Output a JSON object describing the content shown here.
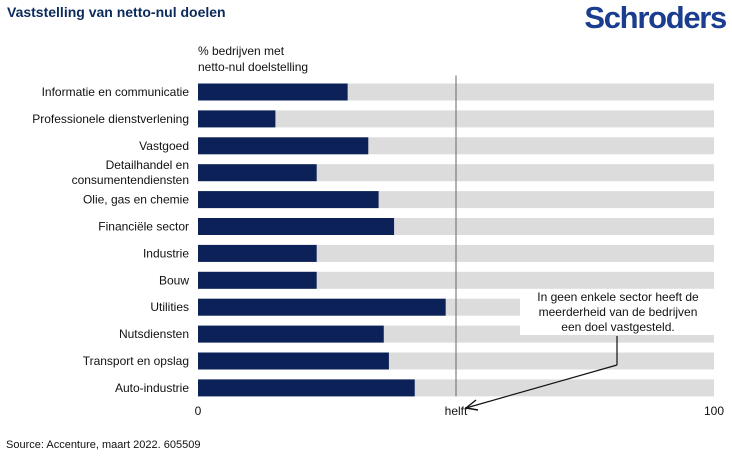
{
  "header": {
    "title": "Vaststelling van netto-nul doelen",
    "brand": "Schroders"
  },
  "unit_label": [
    "% bedrijven met",
    "netto-nul doelstelling"
  ],
  "annotation": [
    "In geen enkele sector heeft de",
    "meerderheid van de bedrijven",
    "een doel vastgesteld."
  ],
  "source": "Source: Accenture, maart 2022. 605509",
  "colors": {
    "bar": "#0b2158",
    "track": "#dcdcdc",
    "title": "#0b2a5b",
    "brand": "#1a3d8f"
  },
  "chart_data": {
    "type": "bar",
    "orientation": "horizontal",
    "categories": [
      [
        "Informatie en communicatie"
      ],
      [
        "Professionele dienstverlening"
      ],
      [
        "Vastgoed"
      ],
      [
        "Detailhandel en",
        "consumentendiensten"
      ],
      [
        "Olie, gas en chemie"
      ],
      [
        "Financiële sector"
      ],
      [
        "Industrie"
      ],
      [
        "Bouw"
      ],
      [
        "Utilities"
      ],
      [
        "Nutsdiensten"
      ],
      [
        "Transport en opslag"
      ],
      [
        "Auto-industrie"
      ]
    ],
    "values": [
      29,
      15,
      33,
      23,
      35,
      38,
      23,
      23,
      48,
      36,
      37,
      42
    ],
    "xlim": [
      0,
      100
    ],
    "ticks": [
      {
        "value": 0,
        "label": "0"
      },
      {
        "value": 50,
        "label": "helft"
      },
      {
        "value": 100,
        "label": "100"
      }
    ],
    "grid": "vertical line at 50"
  }
}
